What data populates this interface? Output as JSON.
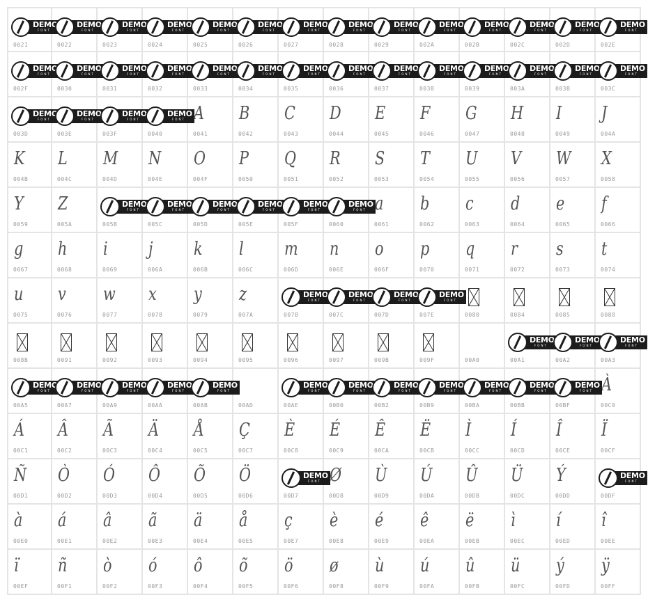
{
  "logo": {
    "line1": "DEMO",
    "line2": "FONT"
  },
  "colors": {
    "grid_border": "#e4e4e4",
    "banner": "#1c1c1c",
    "code_label": "#999999"
  },
  "cells": [
    {
      "code": "0021",
      "type": "demo"
    },
    {
      "code": "0022",
      "type": "demo"
    },
    {
      "code": "0023",
      "type": "demo"
    },
    {
      "code": "0024",
      "type": "demo"
    },
    {
      "code": "0025",
      "type": "demo"
    },
    {
      "code": "0026",
      "type": "demo"
    },
    {
      "code": "0027",
      "type": "demo"
    },
    {
      "code": "0028",
      "type": "demo"
    },
    {
      "code": "0029",
      "type": "demo"
    },
    {
      "code": "002A",
      "type": "demo"
    },
    {
      "code": "002B",
      "type": "demo"
    },
    {
      "code": "002C",
      "type": "demo"
    },
    {
      "code": "002D",
      "type": "demo"
    },
    {
      "code": "002E",
      "type": "demo"
    },
    {
      "code": "002F",
      "type": "demo"
    },
    {
      "code": "0030",
      "type": "demo"
    },
    {
      "code": "0031",
      "type": "demo"
    },
    {
      "code": "0032",
      "type": "demo"
    },
    {
      "code": "0033",
      "type": "demo"
    },
    {
      "code": "0034",
      "type": "demo"
    },
    {
      "code": "0035",
      "type": "demo"
    },
    {
      "code": "0036",
      "type": "demo"
    },
    {
      "code": "0037",
      "type": "demo"
    },
    {
      "code": "0038",
      "type": "demo"
    },
    {
      "code": "0039",
      "type": "demo"
    },
    {
      "code": "003A",
      "type": "demo"
    },
    {
      "code": "003B",
      "type": "demo"
    },
    {
      "code": "003C",
      "type": "demo"
    },
    {
      "code": "003D",
      "type": "demo"
    },
    {
      "code": "003E",
      "type": "demo"
    },
    {
      "code": "003F",
      "type": "demo"
    },
    {
      "code": "0040",
      "type": "demo"
    },
    {
      "code": "0041",
      "type": "char",
      "char": "A"
    },
    {
      "code": "0042",
      "type": "char",
      "char": "B"
    },
    {
      "code": "0043",
      "type": "char",
      "char": "C"
    },
    {
      "code": "0044",
      "type": "char",
      "char": "D"
    },
    {
      "code": "0045",
      "type": "char",
      "char": "E"
    },
    {
      "code": "0046",
      "type": "char",
      "char": "F"
    },
    {
      "code": "0047",
      "type": "char",
      "char": "G"
    },
    {
      "code": "0048",
      "type": "char",
      "char": "H"
    },
    {
      "code": "0049",
      "type": "char",
      "char": "I"
    },
    {
      "code": "004A",
      "type": "char",
      "char": "J"
    },
    {
      "code": "004B",
      "type": "char",
      "char": "K"
    },
    {
      "code": "004C",
      "type": "char",
      "char": "L"
    },
    {
      "code": "004D",
      "type": "char",
      "char": "M"
    },
    {
      "code": "004E",
      "type": "char",
      "char": "N"
    },
    {
      "code": "004F",
      "type": "char",
      "char": "O"
    },
    {
      "code": "0050",
      "type": "char",
      "char": "P"
    },
    {
      "code": "0051",
      "type": "char",
      "char": "Q"
    },
    {
      "code": "0052",
      "type": "char",
      "char": "R"
    },
    {
      "code": "0053",
      "type": "char",
      "char": "S"
    },
    {
      "code": "0054",
      "type": "char",
      "char": "T"
    },
    {
      "code": "0055",
      "type": "char",
      "char": "U"
    },
    {
      "code": "0056",
      "type": "char",
      "char": "V"
    },
    {
      "code": "0057",
      "type": "char",
      "char": "W"
    },
    {
      "code": "0058",
      "type": "char",
      "char": "X"
    },
    {
      "code": "0059",
      "type": "char",
      "char": "Y"
    },
    {
      "code": "005A",
      "type": "char",
      "char": "Z"
    },
    {
      "code": "005B",
      "type": "demo"
    },
    {
      "code": "005C",
      "type": "demo"
    },
    {
      "code": "005D",
      "type": "demo"
    },
    {
      "code": "005E",
      "type": "demo"
    },
    {
      "code": "005F",
      "type": "demo"
    },
    {
      "code": "0060",
      "type": "demo"
    },
    {
      "code": "0061",
      "type": "char",
      "char": "a"
    },
    {
      "code": "0062",
      "type": "char",
      "char": "b"
    },
    {
      "code": "0063",
      "type": "char",
      "char": "c"
    },
    {
      "code": "0064",
      "type": "char",
      "char": "d"
    },
    {
      "code": "0065",
      "type": "char",
      "char": "e"
    },
    {
      "code": "0066",
      "type": "char",
      "char": "f"
    },
    {
      "code": "0067",
      "type": "char",
      "char": "g"
    },
    {
      "code": "0068",
      "type": "char",
      "char": "h"
    },
    {
      "code": "0069",
      "type": "char",
      "char": "i"
    },
    {
      "code": "006A",
      "type": "char",
      "char": "j"
    },
    {
      "code": "006B",
      "type": "char",
      "char": "k"
    },
    {
      "code": "006C",
      "type": "char",
      "char": "l"
    },
    {
      "code": "006D",
      "type": "char",
      "char": "m"
    },
    {
      "code": "006E",
      "type": "char",
      "char": "n"
    },
    {
      "code": "006F",
      "type": "char",
      "char": "o"
    },
    {
      "code": "0070",
      "type": "char",
      "char": "p"
    },
    {
      "code": "0071",
      "type": "char",
      "char": "q"
    },
    {
      "code": "0072",
      "type": "char",
      "char": "r"
    },
    {
      "code": "0073",
      "type": "char",
      "char": "s"
    },
    {
      "code": "0074",
      "type": "char",
      "char": "t"
    },
    {
      "code": "0075",
      "type": "char",
      "char": "u"
    },
    {
      "code": "0076",
      "type": "char",
      "char": "v"
    },
    {
      "code": "0077",
      "type": "char",
      "char": "w"
    },
    {
      "code": "0078",
      "type": "char",
      "char": "x"
    },
    {
      "code": "0079",
      "type": "char",
      "char": "y"
    },
    {
      "code": "007A",
      "type": "char",
      "char": "z"
    },
    {
      "code": "007B",
      "type": "demo"
    },
    {
      "code": "007C",
      "type": "demo"
    },
    {
      "code": "007D",
      "type": "demo"
    },
    {
      "code": "007E",
      "type": "demo"
    },
    {
      "code": "0080",
      "type": "notdef"
    },
    {
      "code": "0084",
      "type": "notdef"
    },
    {
      "code": "0085",
      "type": "notdef"
    },
    {
      "code": "0088",
      "type": "notdef"
    },
    {
      "code": "008B",
      "type": "notdef"
    },
    {
      "code": "0091",
      "type": "notdef"
    },
    {
      "code": "0092",
      "type": "notdef"
    },
    {
      "code": "0093",
      "type": "notdef"
    },
    {
      "code": "0094",
      "type": "notdef"
    },
    {
      "code": "0095",
      "type": "notdef"
    },
    {
      "code": "0096",
      "type": "notdef"
    },
    {
      "code": "0097",
      "type": "notdef"
    },
    {
      "code": "009B",
      "type": "notdef"
    },
    {
      "code": "009F",
      "type": "notdef"
    },
    {
      "code": "00A0",
      "type": "empty"
    },
    {
      "code": "00A1",
      "type": "demo"
    },
    {
      "code": "00A2",
      "type": "demo"
    },
    {
      "code": "00A3",
      "type": "demo"
    },
    {
      "code": "00A5",
      "type": "demo"
    },
    {
      "code": "00A7",
      "type": "demo"
    },
    {
      "code": "00A9",
      "type": "demo"
    },
    {
      "code": "00AA",
      "type": "demo"
    },
    {
      "code": "00AB",
      "type": "demo"
    },
    {
      "code": "00AD",
      "type": "empty"
    },
    {
      "code": "00AE",
      "type": "demo"
    },
    {
      "code": "00B0",
      "type": "demo"
    },
    {
      "code": "00B2",
      "type": "demo"
    },
    {
      "code": "00B9",
      "type": "demo"
    },
    {
      "code": "00BA",
      "type": "demo"
    },
    {
      "code": "00BB",
      "type": "demo"
    },
    {
      "code": "00BF",
      "type": "demo"
    },
    {
      "code": "00C0",
      "type": "char",
      "char": "À"
    },
    {
      "code": "00C1",
      "type": "char",
      "char": "Á"
    },
    {
      "code": "00C2",
      "type": "char",
      "char": "Â"
    },
    {
      "code": "00C3",
      "type": "char",
      "char": "Ã"
    },
    {
      "code": "00C4",
      "type": "char",
      "char": "Ä"
    },
    {
      "code": "00C5",
      "type": "char",
      "char": "Å"
    },
    {
      "code": "00C7",
      "type": "char",
      "char": "Ç"
    },
    {
      "code": "00C8",
      "type": "char",
      "char": "È"
    },
    {
      "code": "00C9",
      "type": "char",
      "char": "É"
    },
    {
      "code": "00CA",
      "type": "char",
      "char": "Ê"
    },
    {
      "code": "00CB",
      "type": "char",
      "char": "Ë"
    },
    {
      "code": "00CC",
      "type": "char",
      "char": "Ì"
    },
    {
      "code": "00CD",
      "type": "char",
      "char": "Í"
    },
    {
      "code": "00CE",
      "type": "char",
      "char": "Î"
    },
    {
      "code": "00CF",
      "type": "char",
      "char": "Ï"
    },
    {
      "code": "00D1",
      "type": "char",
      "char": "Ñ"
    },
    {
      "code": "00D2",
      "type": "char",
      "char": "Ò"
    },
    {
      "code": "00D3",
      "type": "char",
      "char": "Ó"
    },
    {
      "code": "00D4",
      "type": "char",
      "char": "Ô"
    },
    {
      "code": "00D5",
      "type": "char",
      "char": "Õ"
    },
    {
      "code": "00D6",
      "type": "char",
      "char": "Ö"
    },
    {
      "code": "00D7",
      "type": "demo"
    },
    {
      "code": "00D8",
      "type": "char",
      "char": "Ø"
    },
    {
      "code": "00D9",
      "type": "char",
      "char": "Ù"
    },
    {
      "code": "00DA",
      "type": "char",
      "char": "Ú"
    },
    {
      "code": "00DB",
      "type": "char",
      "char": "Û"
    },
    {
      "code": "00DC",
      "type": "char",
      "char": "Ü"
    },
    {
      "code": "00DD",
      "type": "char",
      "char": "Ý"
    },
    {
      "code": "00DF",
      "type": "demo"
    },
    {
      "code": "00E0",
      "type": "char",
      "char": "à"
    },
    {
      "code": "00E1",
      "type": "char",
      "char": "á"
    },
    {
      "code": "00E2",
      "type": "char",
      "char": "â"
    },
    {
      "code": "00E3",
      "type": "char",
      "char": "ã"
    },
    {
      "code": "00E4",
      "type": "char",
      "char": "ä"
    },
    {
      "code": "00E5",
      "type": "char",
      "char": "å"
    },
    {
      "code": "00E7",
      "type": "char",
      "char": "ç"
    },
    {
      "code": "00E8",
      "type": "char",
      "char": "è"
    },
    {
      "code": "00E9",
      "type": "char",
      "char": "é"
    },
    {
      "code": "00EA",
      "type": "char",
      "char": "ê"
    },
    {
      "code": "00EB",
      "type": "char",
      "char": "ë"
    },
    {
      "code": "00EC",
      "type": "char",
      "char": "ì"
    },
    {
      "code": "00ED",
      "type": "char",
      "char": "í"
    },
    {
      "code": "00EE",
      "type": "char",
      "char": "î"
    },
    {
      "code": "00EF",
      "type": "char",
      "char": "ï"
    },
    {
      "code": "00F1",
      "type": "char",
      "char": "ñ"
    },
    {
      "code": "00F2",
      "type": "char",
      "char": "ò"
    },
    {
      "code": "00F3",
      "type": "char",
      "char": "ó"
    },
    {
      "code": "00F4",
      "type": "char",
      "char": "ô"
    },
    {
      "code": "00F5",
      "type": "char",
      "char": "õ"
    },
    {
      "code": "00F6",
      "type": "char",
      "char": "ö"
    },
    {
      "code": "00F8",
      "type": "char",
      "char": "ø"
    },
    {
      "code": "00F9",
      "type": "char",
      "char": "ù"
    },
    {
      "code": "00FA",
      "type": "char",
      "char": "ú"
    },
    {
      "code": "00FB",
      "type": "char",
      "char": "û"
    },
    {
      "code": "00FC",
      "type": "char",
      "char": "ü"
    },
    {
      "code": "00FD",
      "type": "char",
      "char": "ý"
    },
    {
      "code": "00FF",
      "type": "char",
      "char": "ÿ"
    }
  ]
}
